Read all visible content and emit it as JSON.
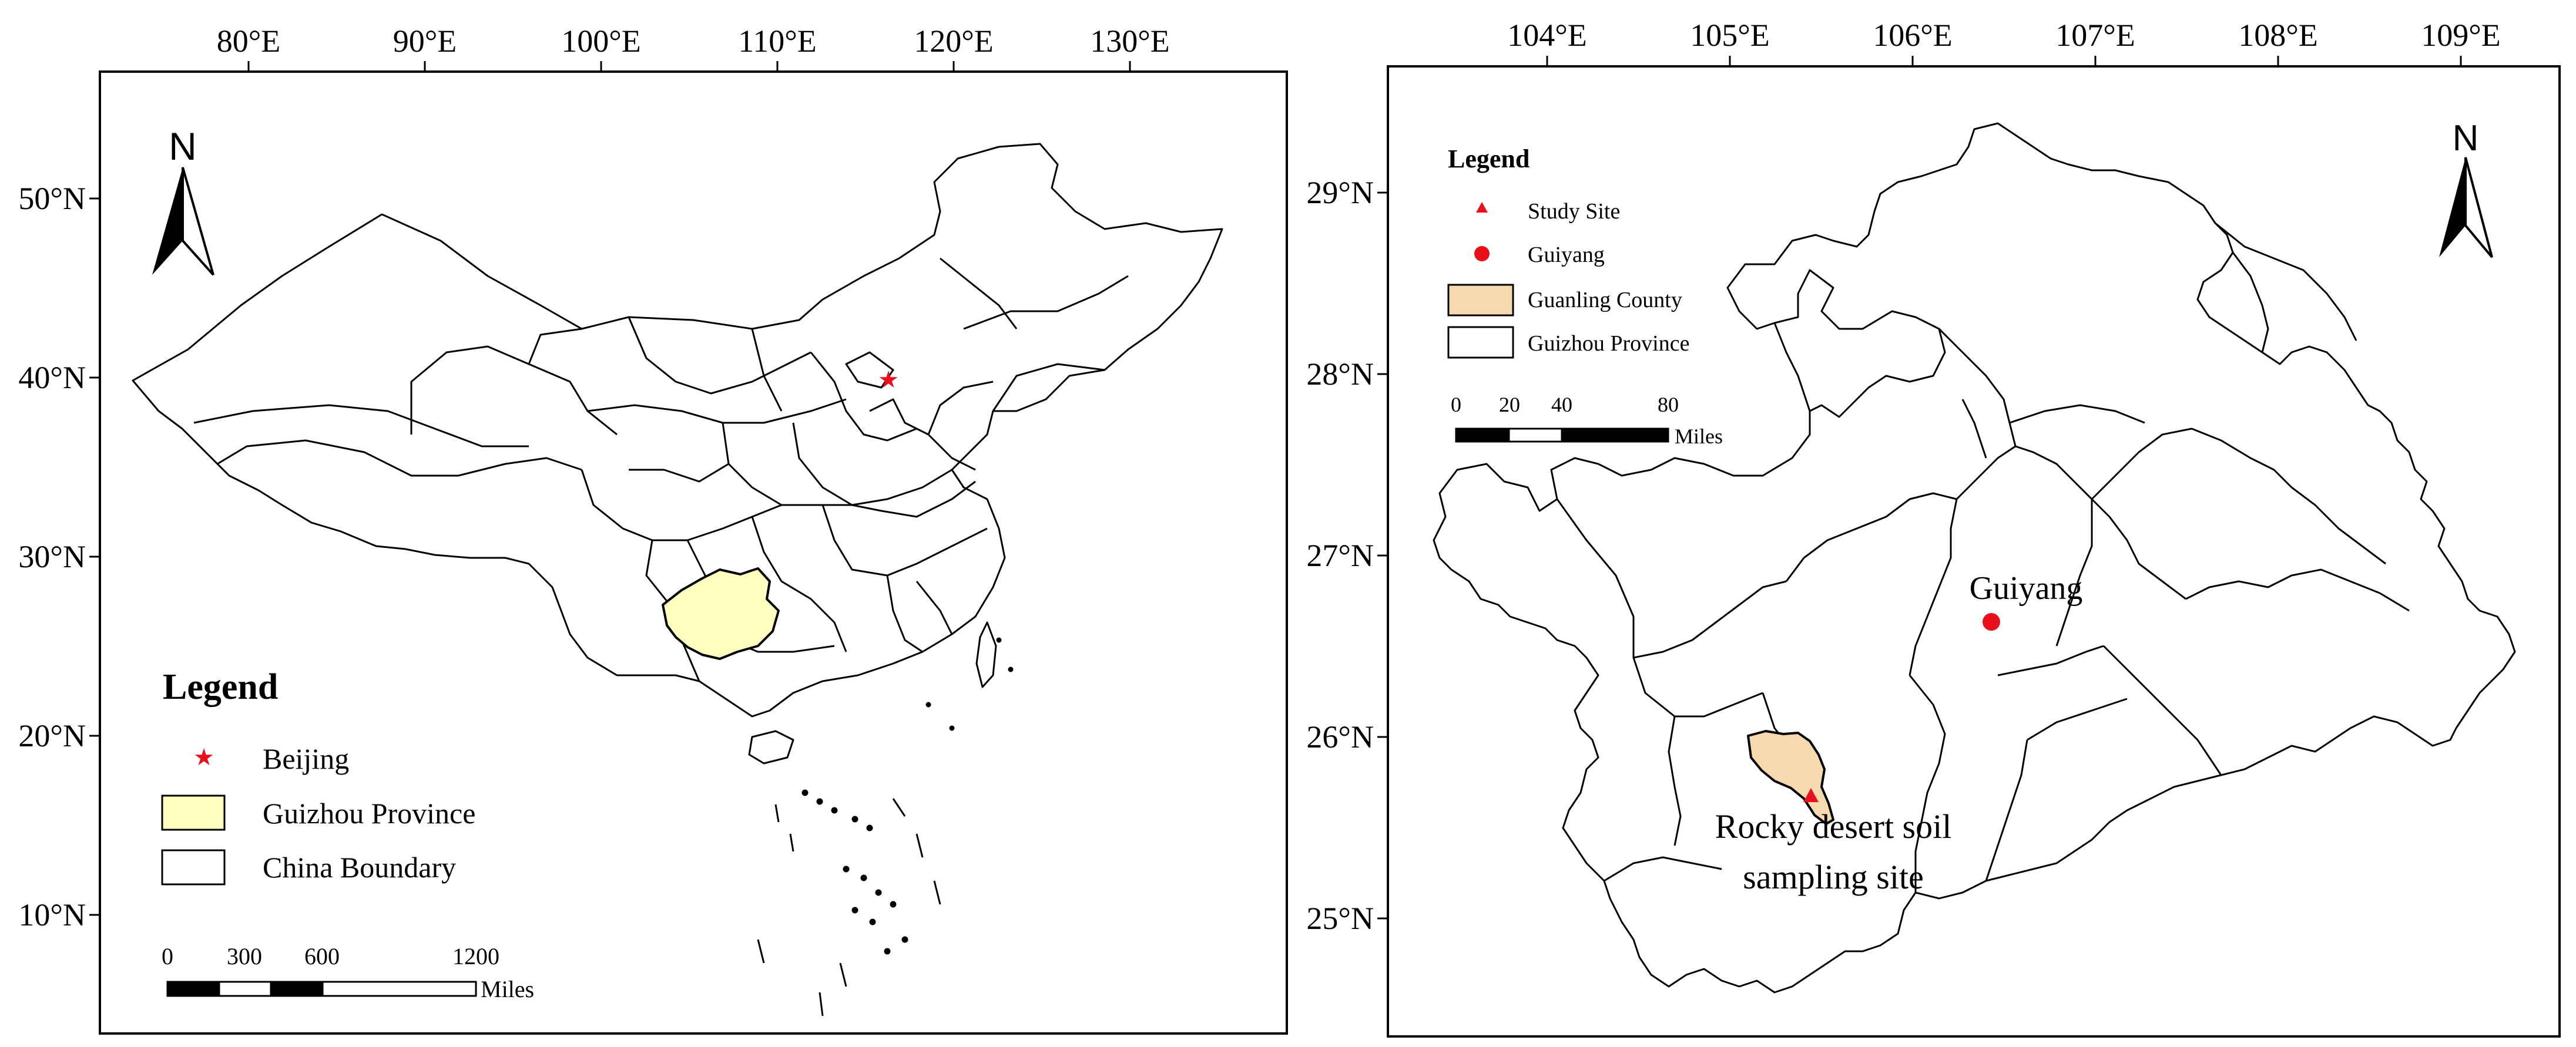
{
  "left_map": {
    "lon_ticks": [
      "80°E",
      "90°E",
      "100°E",
      "110°E",
      "120°E",
      "130°E"
    ],
    "lat_ticks": [
      "50°N",
      "40°N",
      "30°N",
      "20°N",
      "10°N"
    ],
    "north_label": "N",
    "legend": {
      "title": "Legend",
      "items": [
        {
          "label": "Beijing",
          "symbol": "star",
          "color": "#e8101a"
        },
        {
          "label": "Guizhou Province",
          "symbol": "fill-box",
          "color": "#ffffc0"
        },
        {
          "label": "China Boundary",
          "symbol": "outline-box",
          "color": "#ffffff"
        }
      ]
    },
    "scale": {
      "ticks": [
        "0",
        "300",
        "600",
        "1200"
      ],
      "unit": "Miles"
    }
  },
  "right_map": {
    "lon_ticks": [
      "104°E",
      "105°E",
      "106°E",
      "107°E",
      "108°E",
      "109°E"
    ],
    "lat_ticks": [
      "29°N",
      "28°N",
      "27°N",
      "26°N",
      "25°N"
    ],
    "north_label": "N",
    "legend": {
      "title": "Legend",
      "items": [
        {
          "label": "Study Site",
          "symbol": "triangle",
          "color": "#e8101a"
        },
        {
          "label": "Guiyang",
          "symbol": "dot",
          "color": "#e8101a"
        },
        {
          "label": "Guanling County",
          "symbol": "fill-box",
          "color": "#f7d9b0"
        },
        {
          "label": "Guizhou Province",
          "symbol": "outline-box",
          "color": "#ffffff"
        }
      ]
    },
    "scale": {
      "ticks": [
        "0",
        "20",
        "40",
        "80"
      ],
      "unit": "Miles"
    },
    "labels": {
      "city": "Guiyang",
      "site_line1": "Rocky desert soil",
      "site_line2": "sampling site"
    }
  }
}
